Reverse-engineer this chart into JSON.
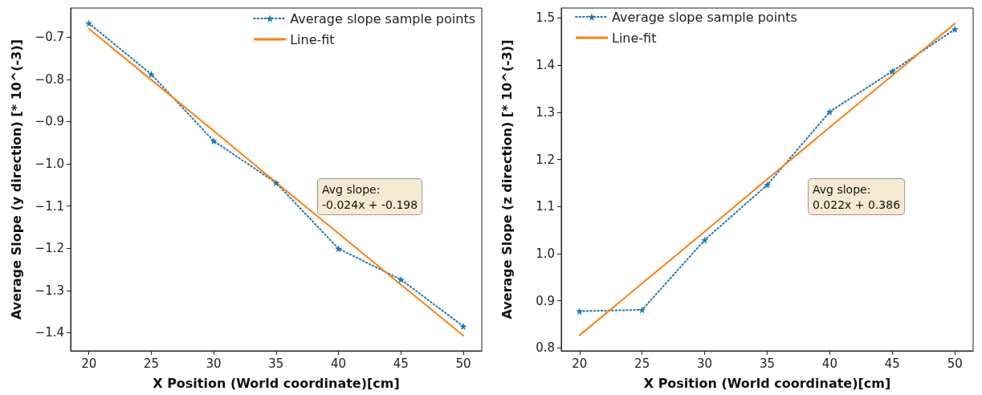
{
  "chart_data": [
    {
      "type": "line",
      "xlabel": "X Position (World coordinate)[cm]",
      "ylabel": "Average Slope (y direction) [* 10^(-3)]",
      "x": [
        20,
        25,
        30,
        35,
        40,
        45,
        50
      ],
      "series": [
        {
          "name": "Average slope sample points",
          "color": "#1f77b4",
          "marker": "star",
          "line_style": "dotted",
          "values": [
            -0.667,
            -0.788,
            -0.946,
            -1.045,
            -1.201,
            -1.274,
            -1.385
          ]
        },
        {
          "name": "Line-fit",
          "color": "#ff7f0e",
          "marker": "none",
          "line_style": "solid",
          "values": [
            -0.68,
            -0.801,
            -0.922,
            -1.044,
            -1.165,
            -1.286,
            -1.407
          ]
        }
      ],
      "xlim": [
        18.54,
        51.48
      ],
      "xticks": [
        20,
        25,
        30,
        35,
        40,
        45,
        50
      ],
      "ylim": [
        -1.443,
        -0.631
      ],
      "yticks": [
        {
          "value": -1.4,
          "label": "−1.4"
        },
        {
          "value": -1.3,
          "label": "−1.3"
        },
        {
          "value": -1.2,
          "label": "−1.2"
        },
        {
          "value": -1.1,
          "label": "−1.1"
        },
        {
          "value": -1.0,
          "label": "−1.0"
        },
        {
          "value": -0.9,
          "label": "−0.9"
        },
        {
          "value": -0.8,
          "label": "−0.8"
        },
        {
          "value": -0.7,
          "label": "−0.7"
        }
      ],
      "annotations": [
        "Avg slope:\n-0.024x + -0.198"
      ],
      "legend": "top right",
      "grid": false
    },
    {
      "type": "line",
      "xlabel": "X Position (World coordinate)[cm]",
      "ylabel": "Average Slope (z direction) [* 10^(-3)]",
      "x": [
        20,
        25,
        30,
        35,
        40,
        45,
        50
      ],
      "series": [
        {
          "name": "Average slope sample points",
          "color": "#1f77b4",
          "marker": "star",
          "line_style": "dotted",
          "values": [
            0.878,
            0.881,
            1.029,
            1.146,
            1.301,
            1.387,
            1.476
          ]
        },
        {
          "name": "Line-fit",
          "color": "#ff7f0e",
          "marker": "none",
          "line_style": "solid",
          "values": [
            0.827,
            0.937,
            1.047,
            1.158,
            1.268,
            1.378,
            1.488
          ]
        }
      ],
      "xlim": [
        18.54,
        51.46
      ],
      "xticks": [
        20,
        25,
        30,
        35,
        40,
        45,
        50
      ],
      "ylim": [
        0.794,
        1.521
      ],
      "yticks": [
        {
          "value": 0.8,
          "label": "0.8"
        },
        {
          "value": 0.9,
          "label": "0.9"
        },
        {
          "value": 1.0,
          "label": "1.0"
        },
        {
          "value": 1.1,
          "label": "1.1"
        },
        {
          "value": 1.2,
          "label": "1.2"
        },
        {
          "value": 1.3,
          "label": "1.3"
        },
        {
          "value": 1.4,
          "label": "1.4"
        },
        {
          "value": 1.5,
          "label": "1.5"
        }
      ],
      "annotations": [
        "Avg slope:\n0.022x + 0.386"
      ],
      "legend": "top left",
      "grid": false
    }
  ]
}
